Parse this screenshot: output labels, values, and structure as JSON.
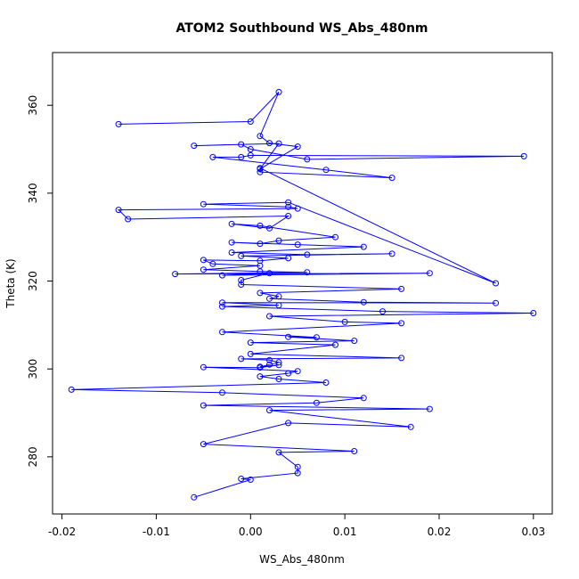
{
  "chart_data": {
    "type": "line",
    "title": "ATOM2 Southbound WS_Abs_480nm",
    "xlabel": "WS_Abs_480nm",
    "ylabel": "Theta (K)",
    "xlim": [
      -0.021,
      0.032
    ],
    "ylim": [
      267,
      372
    ],
    "x_ticks": [
      -0.02,
      -0.01,
      0.0,
      0.01,
      0.02,
      0.03
    ],
    "x_tick_labels": [
      "-0.02",
      "-0.01",
      "0.00",
      "0.01",
      "0.02",
      "0.03"
    ],
    "y_ticks": [
      280,
      300,
      320,
      340,
      360
    ],
    "y_tick_labels": [
      "280",
      "300",
      "320",
      "340",
      "360"
    ],
    "grid": false,
    "series": [
      {
        "color": "#0000ff",
        "marker": "open-circle",
        "points": [
          [
            -0.014,
            355.7
          ],
          [
            0.0,
            356.3
          ],
          [
            0.003,
            363.0
          ],
          [
            0.001,
            353.0
          ],
          [
            0.002,
            351.4
          ],
          [
            0.005,
            350.6
          ],
          [
            0.001,
            345.5
          ],
          [
            0.003,
            351.3
          ],
          [
            -0.006,
            350.8
          ],
          [
            -0.001,
            351.1
          ],
          [
            0.0,
            350.0
          ],
          [
            0.006,
            347.7
          ],
          [
            0.029,
            348.4
          ],
          [
            0.0,
            348.6
          ],
          [
            -0.001,
            348.2
          ],
          [
            -0.004,
            348.2
          ],
          [
            0.008,
            345.3
          ],
          [
            0.015,
            343.5
          ],
          [
            0.001,
            344.8
          ],
          [
            0.001,
            345.7
          ],
          [
            0.026,
            319.5
          ],
          [
            0.004,
            337.9
          ],
          [
            -0.005,
            337.5
          ],
          [
            0.004,
            336.9
          ],
          [
            0.005,
            336.5
          ],
          [
            -0.014,
            336.2
          ],
          [
            -0.013,
            334.1
          ],
          [
            0.004,
            334.8
          ],
          [
            0.002,
            332.0
          ],
          [
            -0.002,
            333.0
          ],
          [
            0.001,
            332.6
          ],
          [
            0.009,
            330.0
          ],
          [
            0.003,
            329.2
          ],
          [
            0.001,
            328.5
          ],
          [
            -0.002,
            328.8
          ],
          [
            0.005,
            328.3
          ],
          [
            0.012,
            327.8
          ],
          [
            -0.002,
            326.5
          ],
          [
            0.006,
            326.0
          ],
          [
            0.015,
            326.2
          ],
          [
            -0.001,
            325.7
          ],
          [
            0.004,
            325.2
          ],
          [
            0.001,
            324.6
          ],
          [
            -0.005,
            324.8
          ],
          [
            -0.004,
            323.9
          ],
          [
            0.001,
            323.5
          ],
          [
            -0.005,
            322.6
          ],
          [
            0.001,
            322.2
          ],
          [
            0.006,
            322.0
          ],
          [
            -0.008,
            321.6
          ],
          [
            0.019,
            321.8
          ],
          [
            -0.003,
            321.3
          ],
          [
            0.002,
            321.8
          ],
          [
            -0.001,
            320.2
          ],
          [
            -0.001,
            319.2
          ],
          [
            0.016,
            318.2
          ],
          [
            0.001,
            317.3
          ],
          [
            0.003,
            316.5
          ],
          [
            0.002,
            316.0
          ],
          [
            0.012,
            315.2
          ],
          [
            0.026,
            315.0
          ],
          [
            -0.003,
            315.1
          ],
          [
            0.003,
            314.5
          ],
          [
            -0.003,
            314.2
          ],
          [
            0.014,
            313.1
          ],
          [
            0.03,
            312.7
          ],
          [
            0.002,
            312.0
          ],
          [
            0.01,
            310.7
          ],
          [
            0.016,
            310.4
          ],
          [
            -0.003,
            308.4
          ],
          [
            0.007,
            307.2
          ],
          [
            0.004,
            307.3
          ],
          [
            0.011,
            306.4
          ],
          [
            0.0,
            306.0
          ],
          [
            0.009,
            305.5
          ],
          [
            0.0,
            303.4
          ],
          [
            0.016,
            302.5
          ],
          [
            -0.001,
            302.3
          ],
          [
            0.002,
            302.0
          ],
          [
            0.003,
            301.5
          ],
          [
            0.002,
            301.0
          ],
          [
            0.001,
            300.5
          ],
          [
            0.003,
            300.9
          ],
          [
            0.001,
            300.3
          ],
          [
            -0.005,
            300.4
          ],
          [
            0.005,
            299.5
          ],
          [
            0.004,
            299.0
          ],
          [
            0.001,
            298.3
          ],
          [
            0.003,
            297.7
          ],
          [
            0.008,
            296.9
          ],
          [
            -0.019,
            295.3
          ],
          [
            -0.003,
            294.6
          ],
          [
            0.012,
            293.4
          ],
          [
            0.007,
            292.3
          ],
          [
            -0.005,
            291.7
          ],
          [
            0.019,
            290.9
          ],
          [
            0.002,
            290.6
          ],
          [
            0.017,
            286.8
          ],
          [
            0.004,
            287.7
          ],
          [
            -0.005,
            282.9
          ],
          [
            0.011,
            281.3
          ],
          [
            0.003,
            281.0
          ],
          [
            0.005,
            277.7
          ],
          [
            0.005,
            276.3
          ],
          [
            -0.001,
            275.0
          ],
          [
            0.0,
            274.8
          ],
          [
            -0.006,
            270.8
          ]
        ]
      }
    ]
  }
}
